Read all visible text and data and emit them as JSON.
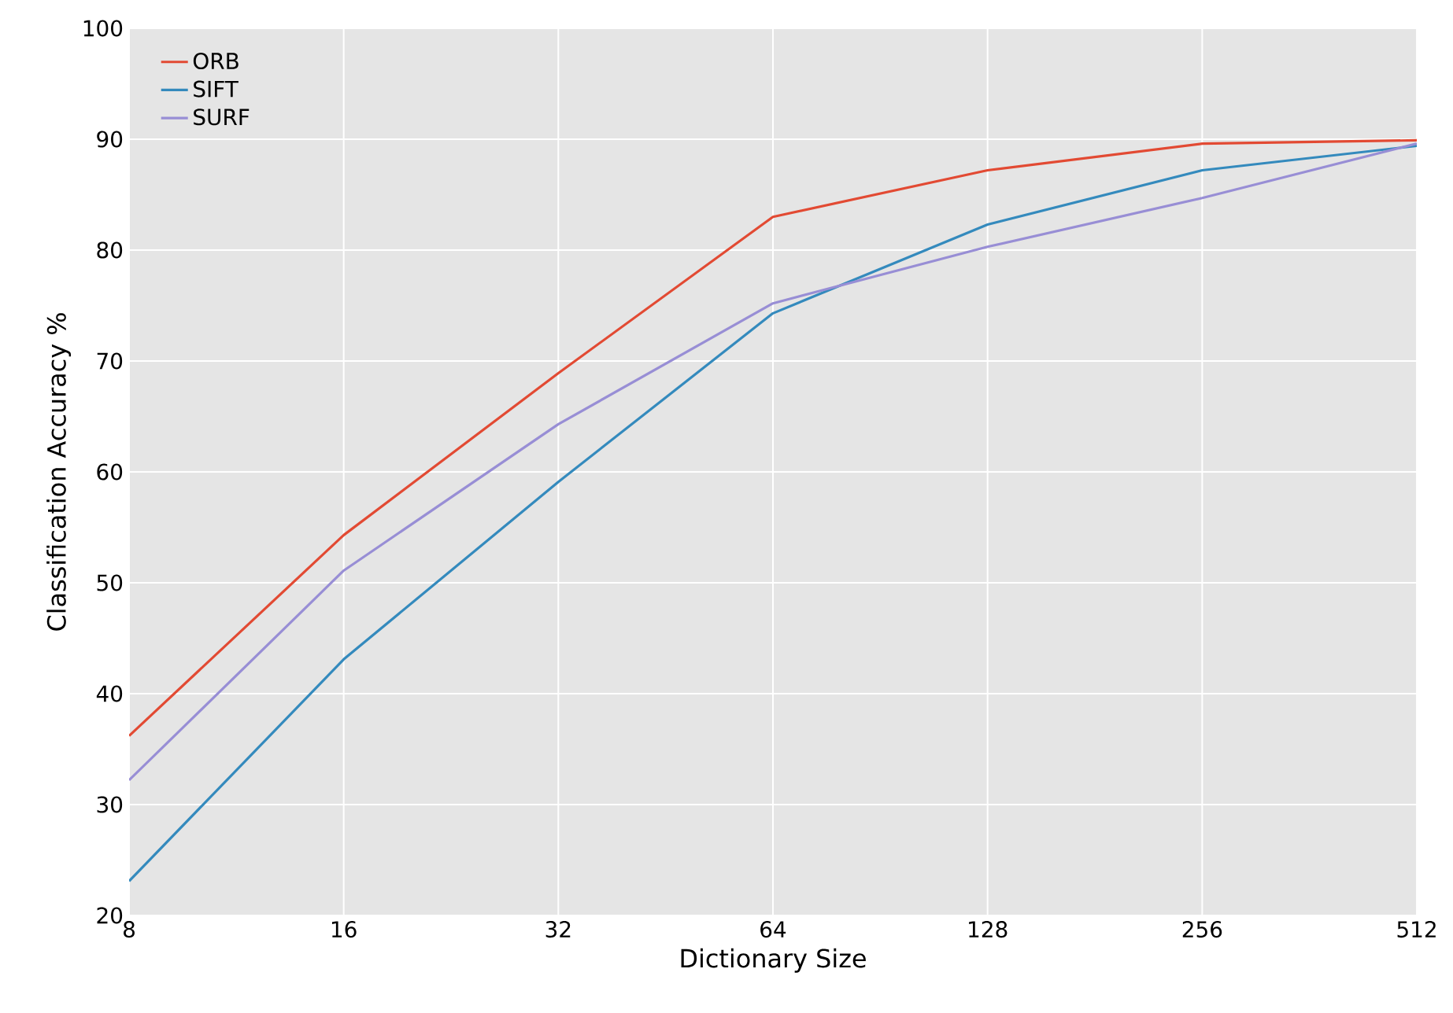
{
  "chart_data": {
    "type": "line",
    "xlabel": "Dictionary Size",
    "ylabel": "Classification Accuracy %",
    "x": [
      8,
      16,
      32,
      64,
      128,
      256,
      512
    ],
    "series": [
      {
        "name": "ORB",
        "color": "#e24a33",
        "values": [
          36.2,
          54.3,
          68.9,
          83.0,
          87.2,
          89.6,
          89.9
        ]
      },
      {
        "name": "SIFT",
        "color": "#348abd",
        "values": [
          23.1,
          43.1,
          59.1,
          74.3,
          82.3,
          87.2,
          89.4
        ]
      },
      {
        "name": "SURF",
        "color": "#988ed5",
        "values": [
          32.2,
          51.1,
          64.3,
          75.2,
          80.3,
          84.7,
          89.6
        ]
      }
    ],
    "log": "x",
    "xlim": [
      8,
      512
    ],
    "xticks": [
      8,
      16,
      32,
      64,
      128,
      256,
      512
    ],
    "ylim": [
      20,
      100
    ],
    "yticks": [
      20,
      30,
      40,
      50,
      60,
      70,
      80,
      90,
      100
    ],
    "grid": true,
    "legend": "top left"
  }
}
